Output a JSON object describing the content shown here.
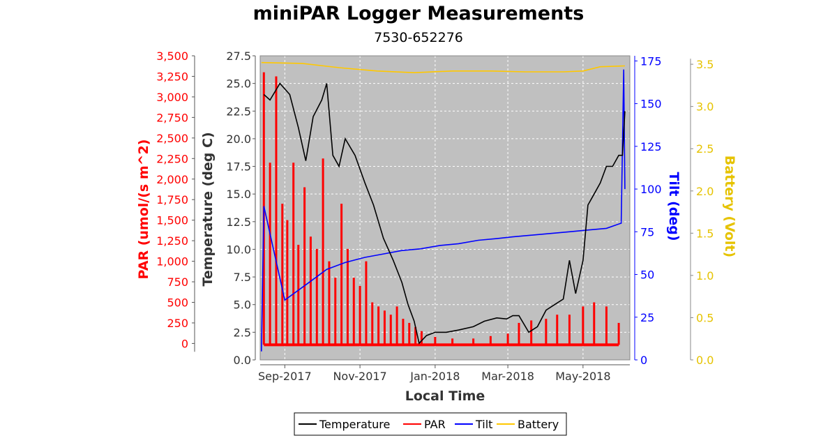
{
  "chart_data": {
    "type": "line",
    "title": "miniPAR Logger Measurements",
    "subtitle": "7530-652276",
    "xlabel": "Local Time",
    "x_ticks": [
      "Sep-2017",
      "Nov-2017",
      "Jan-2018",
      "Mar-2018",
      "May-2018"
    ],
    "x_range": [
      "2017-08-12",
      "2018-06-08"
    ],
    "grid": true,
    "legend_placement": "bottom",
    "axes": {
      "par": {
        "label": "PAR (umol/(s m^2)",
        "color": "#ff0000",
        "range": [
          -200,
          3500
        ],
        "ticks": [
          "0",
          "250",
          "500",
          "750",
          "1,000",
          "1,250",
          "1,500",
          "1,750",
          "2,000",
          "2,250",
          "2,500",
          "2,750",
          "3,000",
          "3,250",
          "3,500"
        ]
      },
      "temperature": {
        "label": "Temperature (deg C)",
        "color": "#333333",
        "range": [
          0,
          27.5
        ],
        "ticks": [
          "0.0",
          "2.5",
          "5.0",
          "7.5",
          "10.0",
          "12.5",
          "15.0",
          "17.5",
          "20.0",
          "22.5",
          "25.0",
          "27.5"
        ]
      },
      "tilt": {
        "label": "Tilt (deg)",
        "color": "#0000ff",
        "range": [
          0,
          178
        ],
        "ticks": [
          "0",
          "25",
          "50",
          "75",
          "100",
          "125",
          "150",
          "175"
        ]
      },
      "battery": {
        "label": "Battery (Volt)",
        "color": "#e6c300",
        "range": [
          0,
          3.6
        ],
        "ticks": [
          "0.0",
          "0.5",
          "1.0",
          "1.5",
          "2.0",
          "2.5",
          "3.0",
          "3.5"
        ]
      }
    },
    "series": [
      {
        "name": "Temperature",
        "axis": "temperature",
        "color": "#000000",
        "x": [
          "2017-08-15",
          "2017-08-20",
          "2017-08-28",
          "2017-09-05",
          "2017-09-12",
          "2017-09-18",
          "2017-09-24",
          "2017-10-01",
          "2017-10-05",
          "2017-10-10",
          "2017-10-15",
          "2017-10-20",
          "2017-10-28",
          "2017-11-05",
          "2017-11-12",
          "2017-11-20",
          "2017-11-28",
          "2017-12-05",
          "2017-12-10",
          "2017-12-15",
          "2017-12-19",
          "2017-12-25",
          "2018-01-01",
          "2018-01-10",
          "2018-01-20",
          "2018-02-01",
          "2018-02-10",
          "2018-02-20",
          "2018-02-28",
          "2018-03-05",
          "2018-03-10",
          "2018-03-18",
          "2018-03-25",
          "2018-04-01",
          "2018-04-08",
          "2018-04-15",
          "2018-04-20",
          "2018-04-25",
          "2018-05-01",
          "2018-05-05",
          "2018-05-10",
          "2018-05-15",
          "2018-05-20",
          "2018-05-25",
          "2018-05-30",
          "2018-06-02",
          "2018-06-04"
        ],
        "y": [
          24,
          23.5,
          25,
          24,
          21,
          18,
          22,
          23.5,
          25,
          18.5,
          17.5,
          20,
          18.5,
          16,
          14,
          11,
          9,
          7,
          5,
          3.5,
          1.5,
          2.2,
          2.5,
          2.5,
          2.7,
          3,
          3.5,
          3.8,
          3.7,
          4,
          4,
          2.5,
          3,
          4.5,
          5,
          5.5,
          9,
          6,
          9,
          14,
          15,
          16,
          17.5,
          17.5,
          18.5,
          18.5,
          22.5
        ]
      },
      {
        "name": "PAR",
        "axis": "par",
        "color": "#ff0000",
        "type": "impulse",
        "x": [
          "2017-08-15",
          "2017-08-20",
          "2017-08-25",
          "2017-08-30",
          "2017-09-03",
          "2017-09-08",
          "2017-09-12",
          "2017-09-17",
          "2017-09-22",
          "2017-09-27",
          "2017-10-02",
          "2017-10-07",
          "2017-10-12",
          "2017-10-17",
          "2017-10-22",
          "2017-10-27",
          "2017-11-01",
          "2017-11-06",
          "2017-11-11",
          "2017-11-16",
          "2017-11-21",
          "2017-11-26",
          "2017-12-01",
          "2017-12-06",
          "2017-12-11",
          "2017-12-16",
          "2017-12-21",
          "2018-01-01",
          "2018-01-15",
          "2018-02-01",
          "2018-02-15",
          "2018-03-01",
          "2018-03-10",
          "2018-03-20",
          "2018-04-01",
          "2018-04-10",
          "2018-04-20",
          "2018-05-01",
          "2018-05-10",
          "2018-05-20",
          "2018-05-30"
        ],
        "y": [
          3300,
          2200,
          3250,
          1700,
          1500,
          2200,
          1200,
          1900,
          1300,
          1150,
          2250,
          1000,
          800,
          1700,
          1150,
          800,
          700,
          1000,
          500,
          450,
          400,
          350,
          450,
          300,
          250,
          200,
          150,
          80,
          60,
          60,
          90,
          120,
          250,
          280,
          300,
          350,
          350,
          450,
          500,
          450,
          250
        ]
      },
      {
        "name": "Tilt",
        "axis": "tilt",
        "color": "#0000ff",
        "x": [
          "2017-08-13",
          "2017-08-15",
          "2017-09-01",
          "2017-09-20",
          "2017-10-05",
          "2017-10-20",
          "2017-11-05",
          "2017-11-20",
          "2017-12-05",
          "2017-12-20",
          "2018-01-05",
          "2018-01-20",
          "2018-02-05",
          "2018-02-20",
          "2018-03-05",
          "2018-03-20",
          "2018-04-05",
          "2018-04-20",
          "2018-05-05",
          "2018-05-20",
          "2018-06-01",
          "2018-06-03",
          "2018-06-04"
        ],
        "y": [
          5,
          90,
          35,
          45,
          53,
          57,
          60,
          62,
          64,
          65,
          67,
          68,
          70,
          71,
          72,
          73,
          74,
          75,
          76,
          77,
          80,
          170,
          100
        ]
      },
      {
        "name": "Battery",
        "axis": "battery",
        "color": "#ffc800",
        "x": [
          "2017-08-13",
          "2017-09-15",
          "2017-10-15",
          "2017-11-15",
          "2017-12-15",
          "2018-01-15",
          "2018-02-15",
          "2018-03-15",
          "2018-04-15",
          "2018-05-01",
          "2018-05-15",
          "2018-06-04"
        ],
        "y": [
          3.52,
          3.51,
          3.46,
          3.42,
          3.4,
          3.42,
          3.42,
          3.41,
          3.41,
          3.42,
          3.47,
          3.48
        ]
      }
    ]
  }
}
